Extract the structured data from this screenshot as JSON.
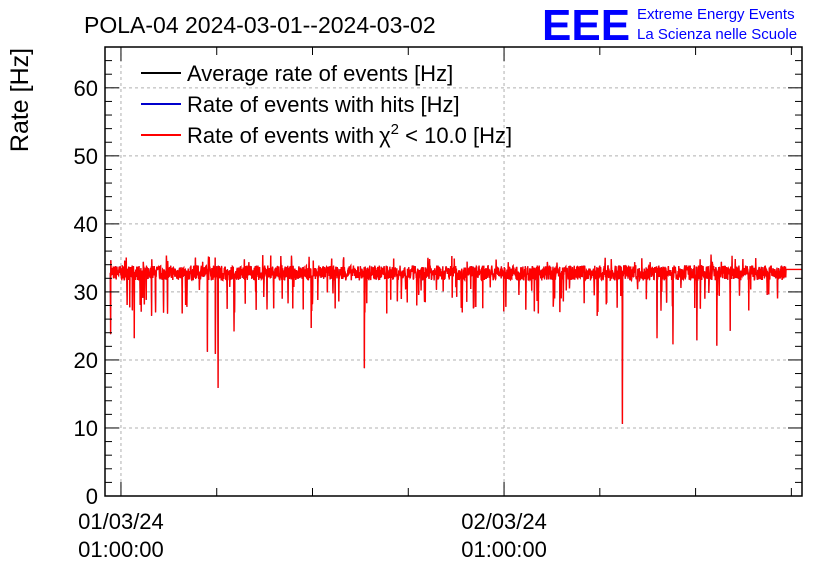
{
  "chart_data": {
    "type": "line",
    "title": "POLA-04 2024-03-01--2024-03-02",
    "ylabel": "Rate [Hz]",
    "xlabel": "",
    "ylim": [
      0,
      66
    ],
    "yticks": [
      0,
      10,
      20,
      30,
      40,
      50,
      60
    ],
    "x_range": [
      "2024-03-01 00:00:00",
      "2024-03-02 19:40:00"
    ],
    "xticks": [
      {
        "t": "2024-03-01 01:00:00",
        "date": "01/03/24",
        "time": "01:00:00"
      },
      {
        "t": "2024-03-02 01:00:00",
        "date": "02/03/24",
        "time": "01:00:00"
      }
    ],
    "grid": true,
    "legend_position": "top-left",
    "series": [
      {
        "name": "Average rate of events [Hz]",
        "color": "#000000"
      },
      {
        "name": "Rate of events with hits [Hz]",
        "color": "#0000cc"
      },
      {
        "name": "Rate of events with",
        "name_math": "χ",
        "name_sup": "2",
        "name_suffix": " < 10.0 [Hz]",
        "color": "#ff0000"
      }
    ],
    "data_start": "2024-03-01 00:20:00",
    "data_end": "2024-03-02 19:40:00",
    "flat_from": "2024-03-02 18:40:00",
    "baseline": 32.8,
    "flat_value": 33.3,
    "initial_dip": {
      "t": "2024-03-01 00:21:00",
      "y": 23.8
    },
    "dips": [
      {
        "t": "2024-03-01 01:50:00",
        "y": 23.2
      },
      {
        "t": "2024-03-01 02:55:00",
        "y": 26.5
      },
      {
        "t": "2024-03-01 03:10:00",
        "y": 27.0
      },
      {
        "t": "2024-03-01 03:55:00",
        "y": 26.8
      },
      {
        "t": "2024-03-01 06:25:00",
        "y": 21.2
      },
      {
        "t": "2024-03-01 06:55:00",
        "y": 20.9
      },
      {
        "t": "2024-03-01 07:05:00",
        "y": 15.9
      },
      {
        "t": "2024-03-01 08:05:00",
        "y": 24.2
      },
      {
        "t": "2024-03-01 12:55:00",
        "y": 24.7
      },
      {
        "t": "2024-03-01 16:15:00",
        "y": 18.8
      },
      {
        "t": "2024-03-02 06:50:00",
        "y": 26.5
      },
      {
        "t": "2024-03-02 08:25:00",
        "y": 10.6
      },
      {
        "t": "2024-03-02 10:35:00",
        "y": 23.2
      },
      {
        "t": "2024-03-02 11:35:00",
        "y": 22.3
      },
      {
        "t": "2024-03-02 13:05:00",
        "y": 22.9
      },
      {
        "t": "2024-03-02 14:20:00",
        "y": 22.1
      },
      {
        "t": "2024-03-02 15:10:00",
        "y": 24.3
      }
    ]
  },
  "branding": {
    "logo": "EEE",
    "line1": "Extreme Energy Events",
    "line2": "La Scienza nelle Scuole",
    "color": "#0000ff"
  }
}
